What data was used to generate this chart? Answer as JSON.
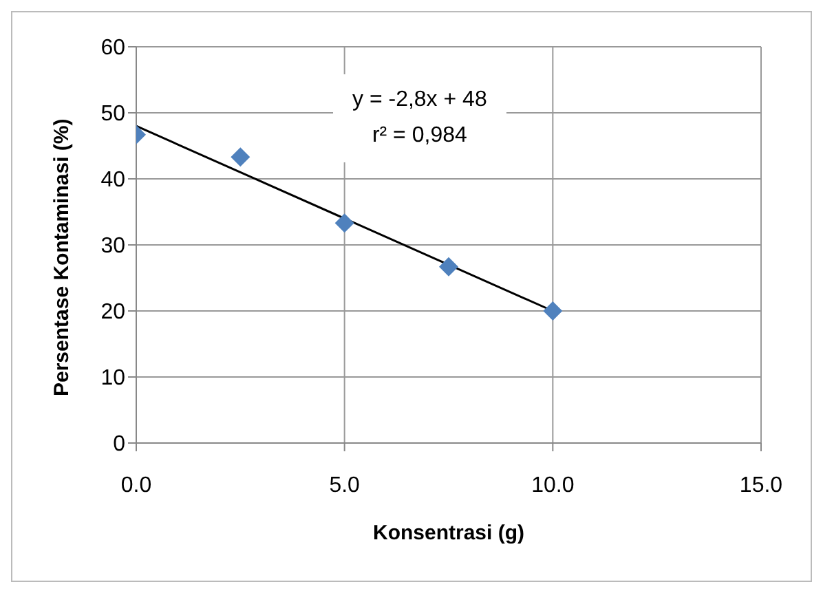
{
  "chart_data": {
    "type": "scatter",
    "xlabel": "Konsentrasi (g)",
    "ylabel": "Persentase Kontaminasi (%)",
    "annotations": [
      "y = -2,8x + 48",
      "r² = 0,984"
    ],
    "x": [
      0,
      2.5,
      5,
      7.5,
      10
    ],
    "series": [
      {
        "type": "scatter",
        "color": "#4f81bd",
        "marker": "diamond",
        "values": [
          46.7,
          43.3,
          33.3,
          26.7,
          20
        ]
      },
      {
        "type": "line",
        "color": "#000000",
        "marker": "none",
        "x": [
          0,
          10
        ],
        "values": [
          48,
          20
        ]
      }
    ],
    "xlim": [
      0,
      15
    ],
    "xticks": [
      {
        "value": 0,
        "label": "0.0"
      },
      {
        "value": 5,
        "label": "5.0"
      },
      {
        "value": 10,
        "label": "10.0"
      },
      {
        "value": 15,
        "label": "15.0"
      }
    ],
    "ylim": [
      0,
      60
    ],
    "yticks": [
      0,
      10,
      20,
      30,
      40,
      50,
      60
    ],
    "grid": true,
    "legend": false
  }
}
